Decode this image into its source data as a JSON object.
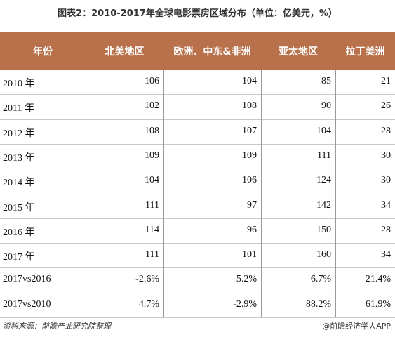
{
  "header": {
    "title": "图表2：2010-2017年全球电影票房区域分布（单位：亿美元，%）"
  },
  "table": {
    "columns": [
      "年份",
      "北美地区",
      "欧洲、中东&非洲",
      "亚太地区",
      "拉丁美洲"
    ],
    "rows": [
      [
        "2010 年",
        "106",
        "104",
        "85",
        "21"
      ],
      [
        "2011 年",
        "102",
        "108",
        "90",
        "26"
      ],
      [
        "2012 年",
        "108",
        "107",
        "104",
        "28"
      ],
      [
        "2013 年",
        "109",
        "109",
        "111",
        "30"
      ],
      [
        "2014 年",
        "104",
        "106",
        "124",
        "30"
      ],
      [
        "2015 年",
        "111",
        "97",
        "142",
        "34"
      ],
      [
        "2016 年",
        "114",
        "96",
        "150",
        "28"
      ],
      [
        "2017 年",
        "111",
        "101",
        "160",
        "34"
      ],
      [
        "2017vs2016",
        "-2.6%",
        "5.2%",
        "6.7%",
        "21.4%"
      ],
      [
        "2017vs2010",
        "4.7%",
        "-2.9%",
        "88.2%",
        "61.9%"
      ]
    ]
  },
  "footer": {
    "source": "资料来源：前瞻产业研究院整理",
    "watermark": "@前瞻经济学人APP"
  }
}
